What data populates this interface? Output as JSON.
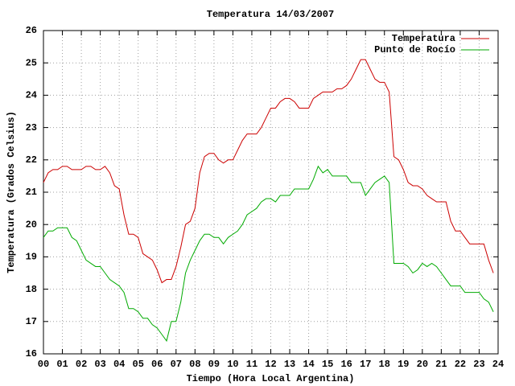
{
  "chart_data": {
    "type": "line",
    "title": "Temperatura 14/03/2007",
    "xlabel": "Tiempo (Hora Local Argentina)",
    "ylabel": "Temperatura (Grados Celsius)",
    "x": [
      0,
      0.25,
      0.5,
      0.75,
      1,
      1.25,
      1.5,
      1.75,
      2,
      2.25,
      2.5,
      2.75,
      3,
      3.25,
      3.5,
      3.75,
      4,
      4.25,
      4.5,
      4.75,
      5,
      5.25,
      5.5,
      5.75,
      6,
      6.25,
      6.5,
      6.75,
      7,
      7.25,
      7.5,
      7.75,
      8,
      8.25,
      8.5,
      8.75,
      9,
      9.25,
      9.5,
      9.75,
      10,
      10.25,
      10.5,
      10.75,
      11,
      11.25,
      11.5,
      11.75,
      12,
      12.25,
      12.5,
      12.75,
      13,
      13.25,
      13.5,
      13.75,
      14,
      14.25,
      14.5,
      14.75,
      15,
      15.25,
      15.5,
      15.75,
      16,
      16.25,
      16.5,
      16.75,
      17,
      17.25,
      17.5,
      17.75,
      18,
      18.25,
      18.5,
      18.75,
      19,
      19.25,
      19.5,
      19.75,
      20,
      20.25,
      20.5,
      20.75,
      21,
      21.25,
      21.5,
      21.75,
      22,
      22.25,
      22.5,
      22.75,
      23,
      23.25,
      23.5,
      23.75
    ],
    "series": [
      {
        "name": "Temperatura",
        "color": "#cc0000",
        "values": [
          21.3,
          21.6,
          21.7,
          21.7,
          21.8,
          21.8,
          21.7,
          21.7,
          21.7,
          21.8,
          21.8,
          21.7,
          21.7,
          21.8,
          21.6,
          21.2,
          21.1,
          20.3,
          19.7,
          19.7,
          19.6,
          19.1,
          19.0,
          18.9,
          18.6,
          18.2,
          18.3,
          18.3,
          18.7,
          19.3,
          20.0,
          20.1,
          20.5,
          21.6,
          22.1,
          22.2,
          22.2,
          22.0,
          21.9,
          22.0,
          22.0,
          22.3,
          22.6,
          22.8,
          22.8,
          22.8,
          23.0,
          23.3,
          23.6,
          23.6,
          23.8,
          23.9,
          23.9,
          23.8,
          23.6,
          23.6,
          23.6,
          23.9,
          24.0,
          24.1,
          24.1,
          24.1,
          24.2,
          24.2,
          24.3,
          24.5,
          24.8,
          25.1,
          25.1,
          24.8,
          24.5,
          24.4,
          24.4,
          24.1,
          22.1,
          22.0,
          21.7,
          21.3,
          21.2,
          21.2,
          21.1,
          20.9,
          20.8,
          20.7,
          20.7,
          20.7,
          20.1,
          19.8,
          19.8,
          19.6,
          19.4,
          19.4,
          19.4,
          19.4,
          18.9,
          18.5
        ]
      },
      {
        "name": "Punto de Rocío",
        "color": "#00aa00",
        "values": [
          19.6,
          19.8,
          19.8,
          19.9,
          19.9,
          19.9,
          19.6,
          19.5,
          19.2,
          18.9,
          18.8,
          18.7,
          18.7,
          18.5,
          18.3,
          18.2,
          18.1,
          17.9,
          17.4,
          17.4,
          17.3,
          17.1,
          17.1,
          16.9,
          16.8,
          16.6,
          16.4,
          17.0,
          17.0,
          17.6,
          18.5,
          18.9,
          19.2,
          19.5,
          19.7,
          19.7,
          19.6,
          19.6,
          19.4,
          19.6,
          19.7,
          19.8,
          20.0,
          20.3,
          20.4,
          20.5,
          20.7,
          20.8,
          20.8,
          20.7,
          20.9,
          20.9,
          20.9,
          21.1,
          21.1,
          21.1,
          21.1,
          21.4,
          21.8,
          21.6,
          21.7,
          21.5,
          21.5,
          21.5,
          21.5,
          21.3,
          21.3,
          21.3,
          20.9,
          21.1,
          21.3,
          21.4,
          21.5,
          21.3,
          18.8,
          18.8,
          18.8,
          18.7,
          18.5,
          18.6,
          18.8,
          18.7,
          18.8,
          18.7,
          18.5,
          18.3,
          18.1,
          18.1,
          18.1,
          17.9,
          17.9,
          17.9,
          17.9,
          17.7,
          17.6,
          17.3
        ]
      }
    ],
    "xlim": [
      0,
      24
    ],
    "xticks": [
      {
        "value": 0,
        "label": "00"
      },
      {
        "value": 1,
        "label": "01"
      },
      {
        "value": 2,
        "label": "02"
      },
      {
        "value": 3,
        "label": "03"
      },
      {
        "value": 4,
        "label": "04"
      },
      {
        "value": 5,
        "label": "05"
      },
      {
        "value": 6,
        "label": "06"
      },
      {
        "value": 7,
        "label": "07"
      },
      {
        "value": 8,
        "label": "08"
      },
      {
        "value": 9,
        "label": "09"
      },
      10,
      11,
      12,
      13,
      14,
      15,
      16,
      17,
      18,
      19,
      20,
      21,
      22,
      23,
      24
    ],
    "ylim": [
      16,
      26
    ],
    "yticks": [
      16,
      17,
      18,
      19,
      20,
      21,
      22,
      23,
      24,
      25,
      26
    ],
    "grid": true,
    "legend": "top-right"
  }
}
